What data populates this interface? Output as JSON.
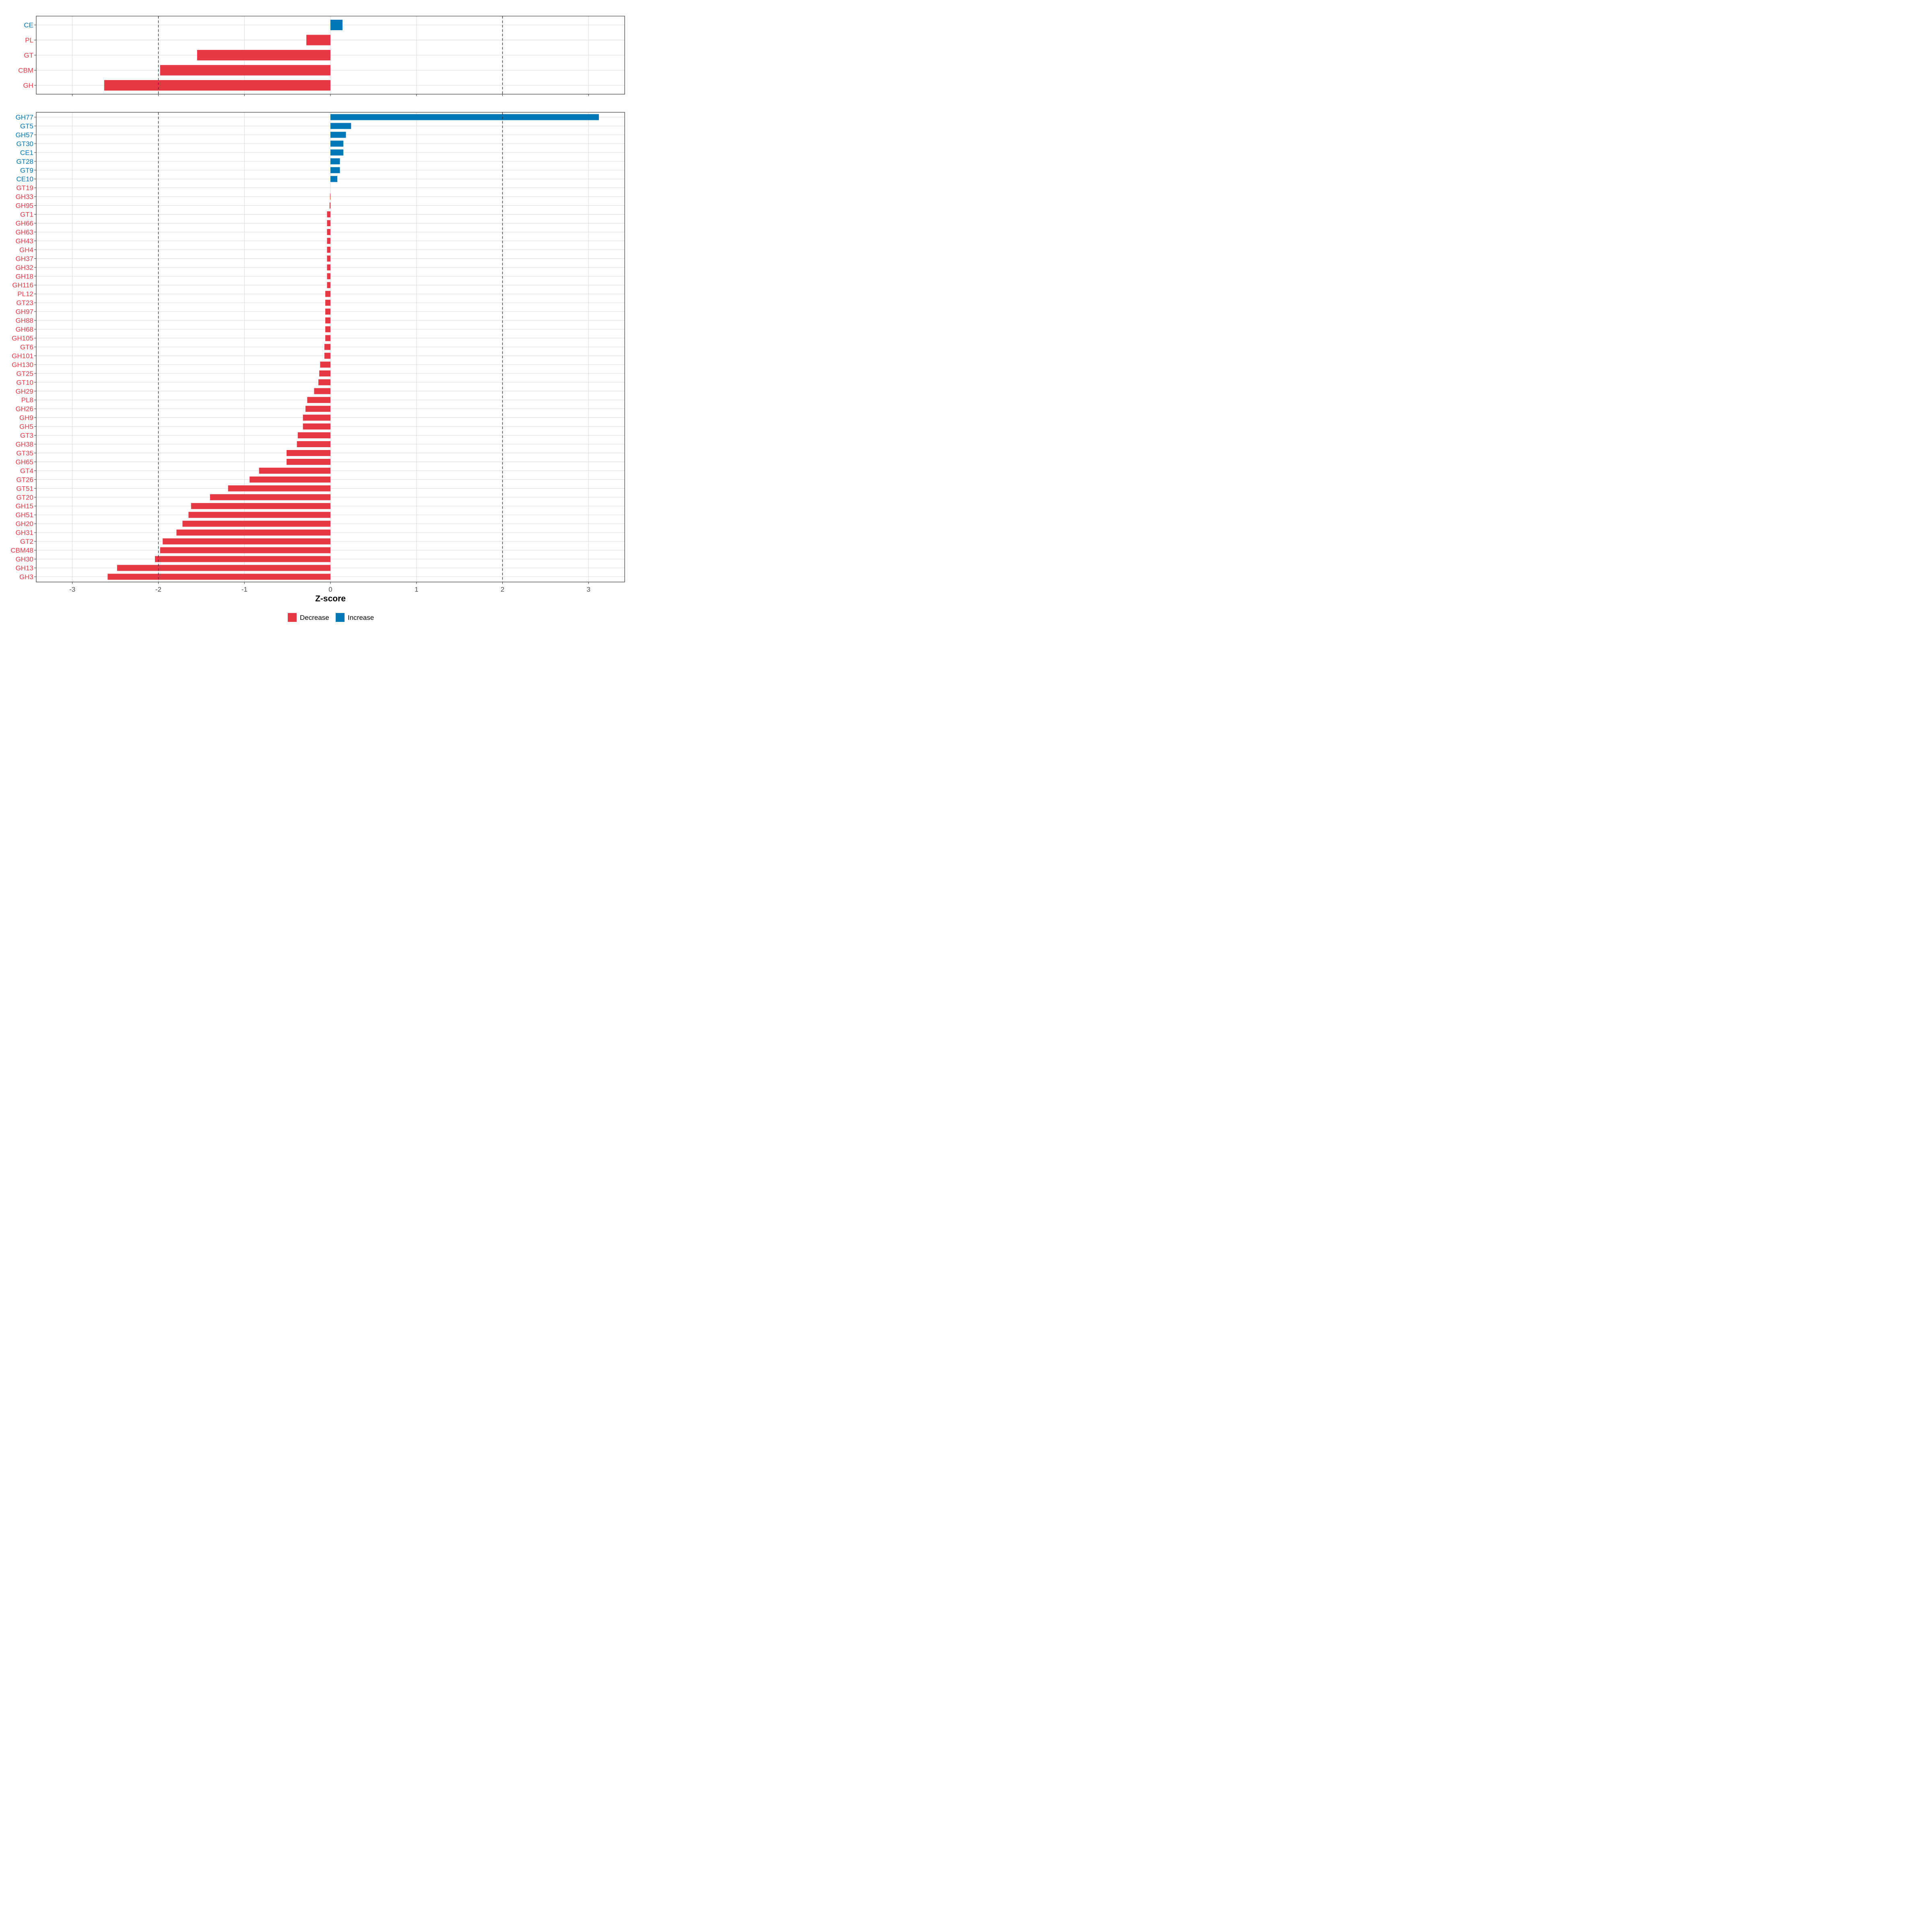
{
  "colors": {
    "decrease": "#E63946",
    "increase": "#0077B6",
    "grid": "#d9d9d9",
    "panel_border": "#333333",
    "refline": "#333333"
  },
  "chart_data": [
    {
      "type": "bar",
      "orientation": "horizontal",
      "panel": "top",
      "categories": [
        "CE",
        "PL",
        "GT",
        "CBM",
        "GH"
      ],
      "values": [
        0.14,
        -0.28,
        -1.55,
        -1.98,
        -2.63
      ],
      "xlim": [
        -3.42,
        3.42
      ],
      "reference_lines": [
        -2,
        2
      ]
    },
    {
      "type": "bar",
      "orientation": "horizontal",
      "panel": "bottom",
      "categories": [
        "GH77",
        "GT5",
        "GH57",
        "GT30",
        "CE1",
        "GT28",
        "GT9",
        "CE10",
        "GT19",
        "GH33",
        "GH95",
        "GT1",
        "GH66",
        "GH63",
        "GH43",
        "GH4",
        "GH37",
        "GH32",
        "GH18",
        "GH116",
        "PL12",
        "GT23",
        "GH97",
        "GH88",
        "GH68",
        "GH105",
        "GT6",
        "GH101",
        "GH130",
        "GT25",
        "GT10",
        "GH29",
        "PL8",
        "GH26",
        "GH9",
        "GH5",
        "GT3",
        "GH38",
        "GT35",
        "GH65",
        "GT4",
        "GT26",
        "GT51",
        "GT20",
        "GH15",
        "GH51",
        "GH20",
        "GH31",
        "GT2",
        "CBM48",
        "GH30",
        "GH13",
        "GH3"
      ],
      "values": [
        3.12,
        0.24,
        0.18,
        0.15,
        0.15,
        0.11,
        0.11,
        0.08,
        0.0,
        -0.005,
        -0.01,
        -0.04,
        -0.04,
        -0.04,
        -0.04,
        -0.04,
        -0.04,
        -0.04,
        -0.04,
        -0.04,
        -0.06,
        -0.06,
        -0.06,
        -0.06,
        -0.06,
        -0.06,
        -0.07,
        -0.07,
        -0.12,
        -0.13,
        -0.14,
        -0.19,
        -0.27,
        -0.29,
        -0.32,
        -0.32,
        -0.38,
        -0.39,
        -0.51,
        -0.51,
        -0.83,
        -0.94,
        -1.19,
        -1.4,
        -1.62,
        -1.65,
        -1.72,
        -1.79,
        -1.95,
        -1.98,
        -2.04,
        -2.48,
        -2.59
      ],
      "xlim": [
        -3.42,
        3.42
      ],
      "reference_lines": [
        -2,
        2
      ]
    }
  ],
  "x_axis": {
    "ticks": [
      -3,
      -2,
      -1,
      0,
      1,
      2,
      3
    ],
    "tick_labels": [
      "-3",
      "-2",
      "-1",
      "0",
      "1",
      "2",
      "3"
    ],
    "title": "Z-score"
  },
  "legend": {
    "position": "bottom",
    "items": [
      {
        "label": "Decrease",
        "color_key": "decrease"
      },
      {
        "label": "Increase",
        "color_key": "increase"
      }
    ]
  }
}
